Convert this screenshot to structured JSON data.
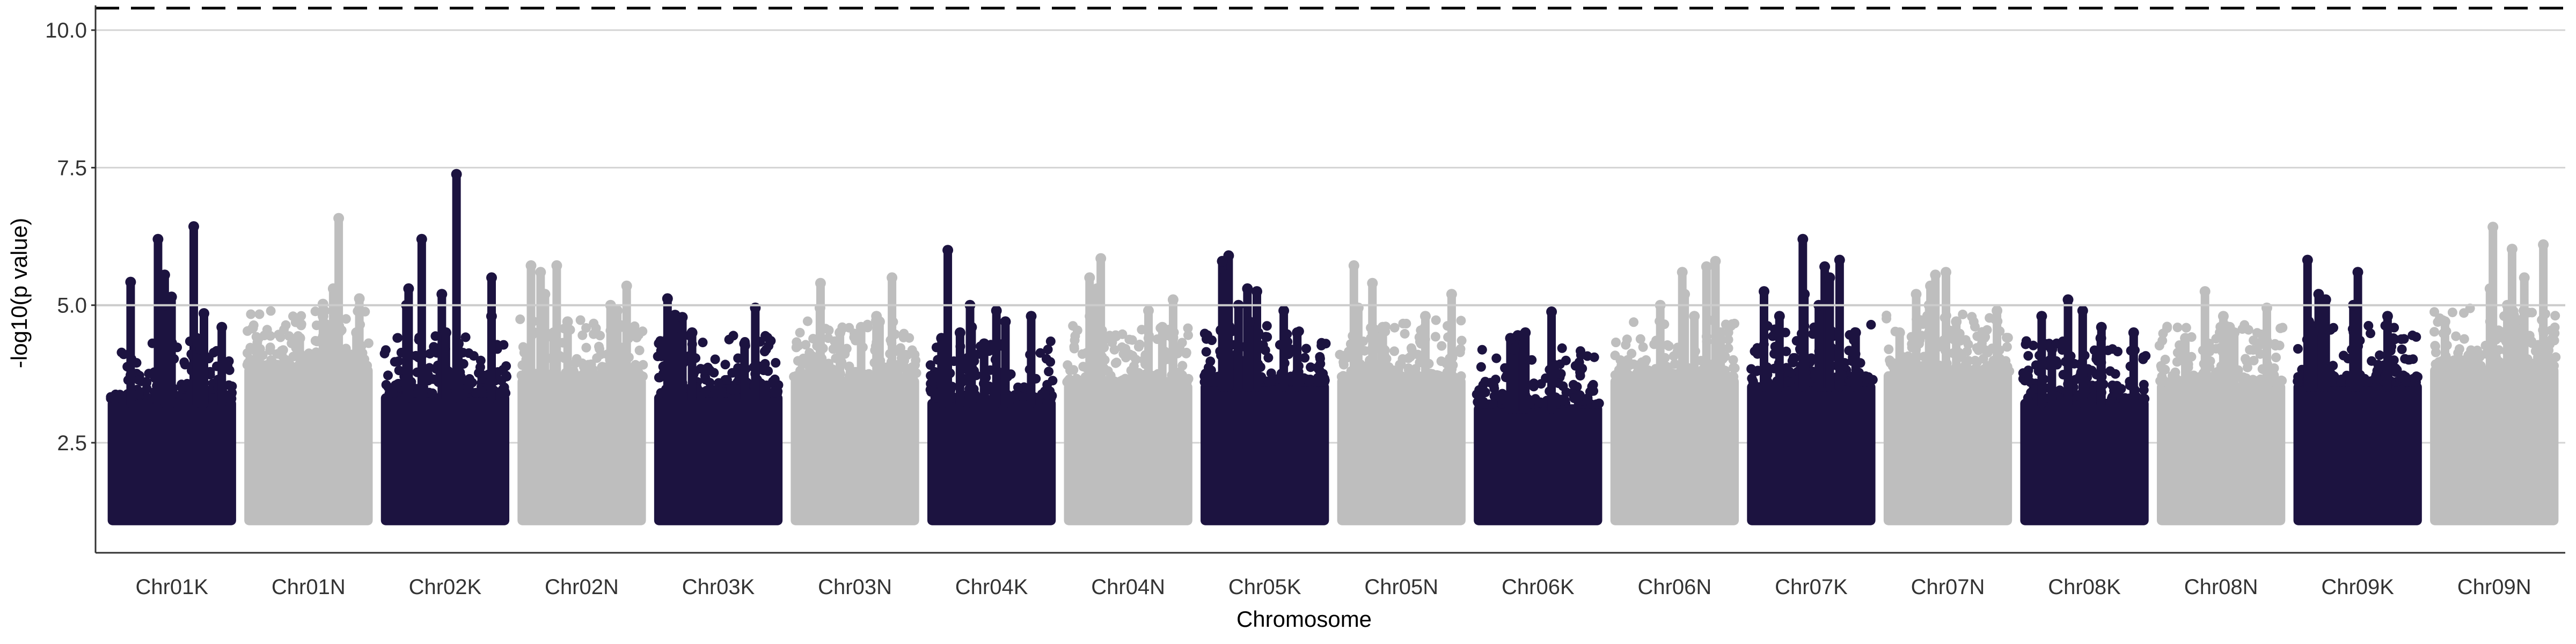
{
  "chart_data": {
    "type": "scatter",
    "subtype": "manhattan",
    "title": "",
    "xlabel": "Chromosome",
    "ylabel": "-log10(p value)",
    "ylim": [
      0.5,
      10.45
    ],
    "yticks": [
      2.5,
      5.0,
      7.5,
      10.0
    ],
    "ytick_labels": [
      "2.5",
      "5.0",
      "7.5",
      "10.0"
    ],
    "categories": [
      "Chr01K",
      "Chr01N",
      "Chr02K",
      "Chr02N",
      "Chr03K",
      "Chr03N",
      "Chr04K",
      "Chr04N",
      "Chr05K",
      "Chr05N",
      "Chr06K",
      "Chr06N",
      "Chr07K",
      "Chr07N",
      "Chr08K",
      "Chr08N",
      "Chr09K",
      "Chr09N"
    ],
    "colors": [
      "#1c1340",
      "#bebebe"
    ],
    "min_plotted_value": 1.0,
    "grid": "horizontal major lines only",
    "reference_lines": [
      {
        "y": 5.0,
        "style": "solid",
        "color": "#cccccc"
      },
      {
        "y": 10.4,
        "style": "dashed",
        "color": "#000000"
      }
    ],
    "series": [
      {
        "chromosome": "Chr01K",
        "band_top": 3.3,
        "peaks": [
          6.43,
          6.2,
          5.55,
          5.42,
          5.15,
          5.0,
          4.85,
          4.6,
          4.4,
          4.2
        ]
      },
      {
        "chromosome": "Chr01N",
        "band_top": 3.9,
        "peaks": [
          6.58,
          5.3,
          5.12,
          5.02,
          4.8,
          4.6,
          4.5,
          4.4,
          4.3
        ]
      },
      {
        "chromosome": "Chr02K",
        "band_top": 3.4,
        "peaks": [
          7.38,
          6.2,
          5.5,
          5.3,
          5.2,
          5.0,
          4.8,
          4.5,
          4.3
        ]
      },
      {
        "chromosome": "Chr02N",
        "band_top": 3.7,
        "peaks": [
          5.72,
          5.72,
          5.6,
          5.35,
          5.2,
          5.0,
          4.9,
          4.7,
          4.5
        ]
      },
      {
        "chromosome": "Chr03K",
        "band_top": 3.4,
        "peaks": [
          5.12,
          4.95,
          4.82,
          4.78,
          4.6,
          4.5,
          4.3
        ]
      },
      {
        "chromosome": "Chr03N",
        "band_top": 3.7,
        "peaks": [
          5.5,
          5.4,
          4.95,
          4.8,
          4.7,
          4.6,
          4.5
        ]
      },
      {
        "chromosome": "Chr04K",
        "band_top": 3.3,
        "peaks": [
          6.0,
          5.0,
          4.9,
          4.8,
          4.7,
          4.6,
          4.5,
          4.4,
          4.3
        ]
      },
      {
        "chromosome": "Chr04N",
        "band_top": 3.6,
        "peaks": [
          5.85,
          5.5,
          5.3,
          5.1,
          4.9,
          4.8,
          4.6,
          4.4
        ]
      },
      {
        "chromosome": "Chr05K",
        "band_top": 3.6,
        "peaks": [
          5.9,
          5.8,
          5.55,
          5.3,
          5.25,
          5.0,
          4.9,
          4.7,
          4.5
        ]
      },
      {
        "chromosome": "Chr05N",
        "band_top": 3.7,
        "peaks": [
          5.72,
          5.4,
          5.2,
          4.95,
          4.8,
          4.6,
          4.5,
          4.4
        ]
      },
      {
        "chromosome": "Chr06K",
        "band_top": 3.2,
        "peaks": [
          4.88,
          4.5,
          4.45,
          4.4,
          4.3,
          4.2
        ]
      },
      {
        "chromosome": "Chr06N",
        "band_top": 3.7,
        "peaks": [
          5.8,
          5.7,
          5.6,
          5.2,
          5.0,
          4.8,
          4.5
        ]
      },
      {
        "chromosome": "Chr07K",
        "band_top": 3.6,
        "peaks": [
          6.2,
          5.82,
          5.7,
          5.5,
          5.25,
          5.2,
          5.0,
          4.8,
          4.5
        ]
      },
      {
        "chromosome": "Chr07N",
        "band_top": 3.8,
        "peaks": [
          5.6,
          5.55,
          5.35,
          5.2,
          5.0,
          4.9,
          4.7,
          4.5
        ]
      },
      {
        "chromosome": "Chr08K",
        "band_top": 3.3,
        "peaks": [
          5.1,
          4.9,
          4.8,
          4.6,
          4.5,
          4.4,
          4.2
        ]
      },
      {
        "chromosome": "Chr08N",
        "band_top": 3.6,
        "peaks": [
          5.25,
          4.95,
          4.8,
          4.6,
          4.5,
          4.4
        ]
      },
      {
        "chromosome": "Chr09K",
        "band_top": 3.6,
        "peaks": [
          5.82,
          5.6,
          5.2,
          5.1,
          5.0,
          4.8,
          4.7,
          4.5
        ]
      },
      {
        "chromosome": "Chr09N",
        "band_top": 3.9,
        "peaks": [
          6.42,
          6.1,
          6.02,
          5.5,
          5.3,
          5.0,
          4.9,
          4.7,
          4.5
        ]
      }
    ]
  }
}
